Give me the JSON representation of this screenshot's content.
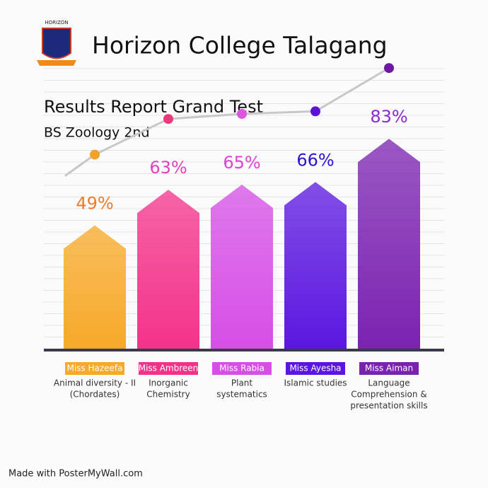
{
  "header": {
    "logo_text": "HORIZON",
    "college": "Horizon College Talagang"
  },
  "chart_data": {
    "type": "arrow-bar",
    "title": "Results Report Grand Test",
    "subtitle": "BS Zoology 2nd",
    "categories": [
      "Miss Hazeefa",
      "Miss Ambreen",
      "Miss Rabia",
      "Miss Ayesha",
      "Miss Aiman"
    ],
    "subjects": [
      [
        "Animal diversity - II",
        "(Chordates)"
      ],
      [
        "Inorganic",
        "Chemistry"
      ],
      [
        "Plant",
        "systematics"
      ],
      [
        "Islamic studies"
      ],
      [
        "Language",
        "Comprehension &",
        "presentation skills"
      ]
    ],
    "values": [
      49,
      63,
      65,
      66,
      83
    ],
    "value_labels": [
      "49%",
      "63%",
      "65%",
      "66%",
      "83%"
    ],
    "colors": [
      "#f7a928",
      "#f4328a",
      "#d64ee6",
      "#5a16e0",
      "#7a22b0"
    ],
    "label_colors": [
      "#f07a2a",
      "#e63fc0",
      "#e040d8",
      "#2a16d0",
      "#8a2ad0"
    ],
    "trend_dot_colors": [
      "#f2a22a",
      "#ea3a7c",
      "#dd55e0",
      "#5e12d8",
      "#6e18a8"
    ]
  },
  "footer": "Made with PosterMyWall.com"
}
